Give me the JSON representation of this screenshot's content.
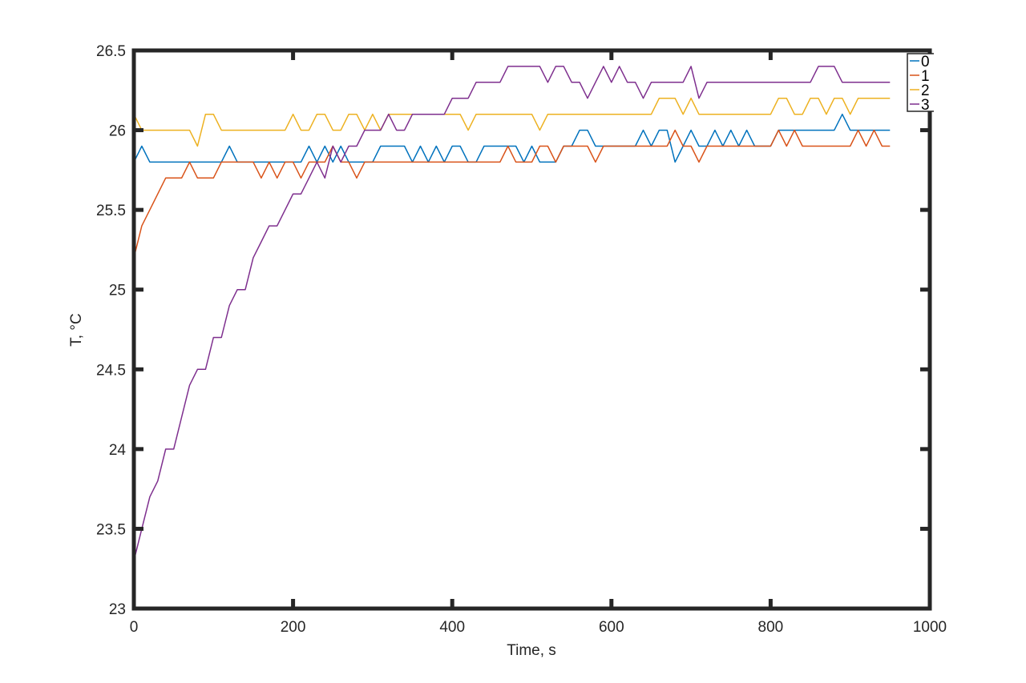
{
  "chart_data": {
    "type": "line",
    "title": "",
    "xlabel": "Time, s",
    "ylabel": "T, °C",
    "xlim": [
      0,
      1000
    ],
    "ylim": [
      23,
      26.5
    ],
    "x_ticks": [
      0,
      200,
      400,
      600,
      800,
      1000
    ],
    "y_ticks": [
      23,
      23.5,
      24,
      24.5,
      25,
      25.5,
      26,
      26.5
    ],
    "x_tick_labels": [
      "0",
      "200",
      "400",
      "600",
      "800",
      "1000"
    ],
    "y_tick_labels": [
      "23",
      "23.5",
      "24",
      "24.5",
      "25",
      "25.5",
      "26",
      "26.5"
    ],
    "grid": false,
    "legend_position": "top-right",
    "x": [
      0,
      10,
      20,
      30,
      40,
      50,
      60,
      70,
      80,
      90,
      100,
      110,
      120,
      130,
      140,
      150,
      160,
      170,
      180,
      190,
      200,
      210,
      220,
      230,
      240,
      250,
      260,
      270,
      280,
      290,
      300,
      310,
      320,
      330,
      340,
      350,
      360,
      370,
      380,
      390,
      400,
      410,
      420,
      430,
      440,
      450,
      460,
      470,
      480,
      490,
      500,
      510,
      520,
      530,
      540,
      550,
      560,
      570,
      580,
      590,
      600,
      610,
      620,
      630,
      640,
      650,
      660,
      670,
      680,
      690,
      700,
      710,
      720,
      730,
      740,
      750,
      760,
      770,
      780,
      790,
      800,
      810,
      820,
      830,
      840,
      850,
      860,
      870,
      880,
      890,
      900,
      910,
      920,
      930,
      940,
      950
    ],
    "series": [
      {
        "name": "0",
        "color": "#0072BD",
        "values": [
          25.8,
          25.9,
          25.8,
          25.8,
          25.8,
          25.8,
          25.8,
          25.8,
          25.8,
          25.8,
          25.8,
          25.8,
          25.9,
          25.8,
          25.8,
          25.8,
          25.8,
          25.8,
          25.8,
          25.8,
          25.8,
          25.8,
          25.9,
          25.8,
          25.9,
          25.8,
          25.9,
          25.8,
          25.8,
          25.8,
          25.8,
          25.9,
          25.9,
          25.9,
          25.9,
          25.8,
          25.9,
          25.8,
          25.9,
          25.8,
          25.9,
          25.9,
          25.8,
          25.8,
          25.9,
          25.9,
          25.9,
          25.9,
          25.9,
          25.8,
          25.9,
          25.8,
          25.8,
          25.8,
          25.9,
          25.9,
          26.0,
          26.0,
          25.9,
          25.9,
          25.9,
          25.9,
          25.9,
          25.9,
          26.0,
          25.9,
          26.0,
          26.0,
          25.8,
          25.9,
          26.0,
          25.9,
          25.9,
          26.0,
          25.9,
          26.0,
          25.9,
          26.0,
          25.9,
          25.9,
          25.9,
          26.0,
          26.0,
          26.0,
          26.0,
          26.0,
          26.0,
          26.0,
          26.0,
          26.1,
          26.0,
          26.0,
          26.0,
          26.0,
          26.0,
          26.0
        ]
      },
      {
        "name": "1",
        "color": "#D95319",
        "values": [
          25.2,
          25.4,
          25.5,
          25.6,
          25.7,
          25.7,
          25.7,
          25.8,
          25.7,
          25.7,
          25.7,
          25.8,
          25.8,
          25.8,
          25.8,
          25.8,
          25.7,
          25.8,
          25.7,
          25.8,
          25.8,
          25.7,
          25.8,
          25.8,
          25.8,
          25.9,
          25.8,
          25.8,
          25.7,
          25.8,
          25.8,
          25.8,
          25.8,
          25.8,
          25.8,
          25.8,
          25.8,
          25.8,
          25.8,
          25.8,
          25.8,
          25.8,
          25.8,
          25.8,
          25.8,
          25.8,
          25.8,
          25.9,
          25.8,
          25.8,
          25.8,
          25.9,
          25.9,
          25.8,
          25.9,
          25.9,
          25.9,
          25.9,
          25.8,
          25.9,
          25.9,
          25.9,
          25.9,
          25.9,
          25.9,
          25.9,
          25.9,
          25.9,
          26.0,
          25.9,
          25.9,
          25.8,
          25.9,
          25.9,
          25.9,
          25.9,
          25.9,
          25.9,
          25.9,
          25.9,
          25.9,
          26.0,
          25.9,
          26.0,
          25.9,
          25.9,
          25.9,
          25.9,
          25.9,
          25.9,
          25.9,
          26.0,
          25.9,
          26.0,
          25.9,
          25.9
        ]
      },
      {
        "name": "2",
        "color": "#EDB120",
        "values": [
          26.1,
          26.0,
          26.0,
          26.0,
          26.0,
          26.0,
          26.0,
          26.0,
          25.9,
          26.1,
          26.1,
          26.0,
          26.0,
          26.0,
          26.0,
          26.0,
          26.0,
          26.0,
          26.0,
          26.0,
          26.1,
          26.0,
          26.0,
          26.1,
          26.1,
          26.0,
          26.0,
          26.1,
          26.1,
          26.0,
          26.1,
          26.0,
          26.1,
          26.1,
          26.1,
          26.1,
          26.1,
          26.1,
          26.1,
          26.1,
          26.1,
          26.1,
          26.0,
          26.1,
          26.1,
          26.1,
          26.1,
          26.1,
          26.1,
          26.1,
          26.1,
          26.0,
          26.1,
          26.1,
          26.1,
          26.1,
          26.1,
          26.1,
          26.1,
          26.1,
          26.1,
          26.1,
          26.1,
          26.1,
          26.1,
          26.1,
          26.2,
          26.2,
          26.2,
          26.1,
          26.2,
          26.1,
          26.1,
          26.1,
          26.1,
          26.1,
          26.1,
          26.1,
          26.1,
          26.1,
          26.1,
          26.2,
          26.2,
          26.1,
          26.1,
          26.2,
          26.2,
          26.1,
          26.2,
          26.2,
          26.1,
          26.2,
          26.2,
          26.2,
          26.2,
          26.2
        ]
      },
      {
        "name": "3",
        "color": "#7E2F8E",
        "values": [
          23.3,
          23.5,
          23.7,
          23.8,
          24.0,
          24.0,
          24.2,
          24.4,
          24.5,
          24.5,
          24.7,
          24.7,
          24.9,
          25.0,
          25.0,
          25.2,
          25.3,
          25.4,
          25.4,
          25.5,
          25.6,
          25.6,
          25.7,
          25.8,
          25.7,
          25.9,
          25.8,
          25.9,
          25.9,
          26.0,
          26.0,
          26.0,
          26.1,
          26.0,
          26.0,
          26.1,
          26.1,
          26.1,
          26.1,
          26.1,
          26.2,
          26.2,
          26.2,
          26.3,
          26.3,
          26.3,
          26.3,
          26.4,
          26.4,
          26.4,
          26.4,
          26.4,
          26.3,
          26.4,
          26.4,
          26.3,
          26.3,
          26.2,
          26.3,
          26.4,
          26.3,
          26.4,
          26.3,
          26.3,
          26.2,
          26.3,
          26.3,
          26.3,
          26.3,
          26.3,
          26.4,
          26.2,
          26.3,
          26.3,
          26.3,
          26.3,
          26.3,
          26.3,
          26.3,
          26.3,
          26.3,
          26.3,
          26.3,
          26.3,
          26.3,
          26.3,
          26.4,
          26.4,
          26.4,
          26.3,
          26.3,
          26.3,
          26.3,
          26.3,
          26.3,
          26.3
        ]
      }
    ]
  }
}
